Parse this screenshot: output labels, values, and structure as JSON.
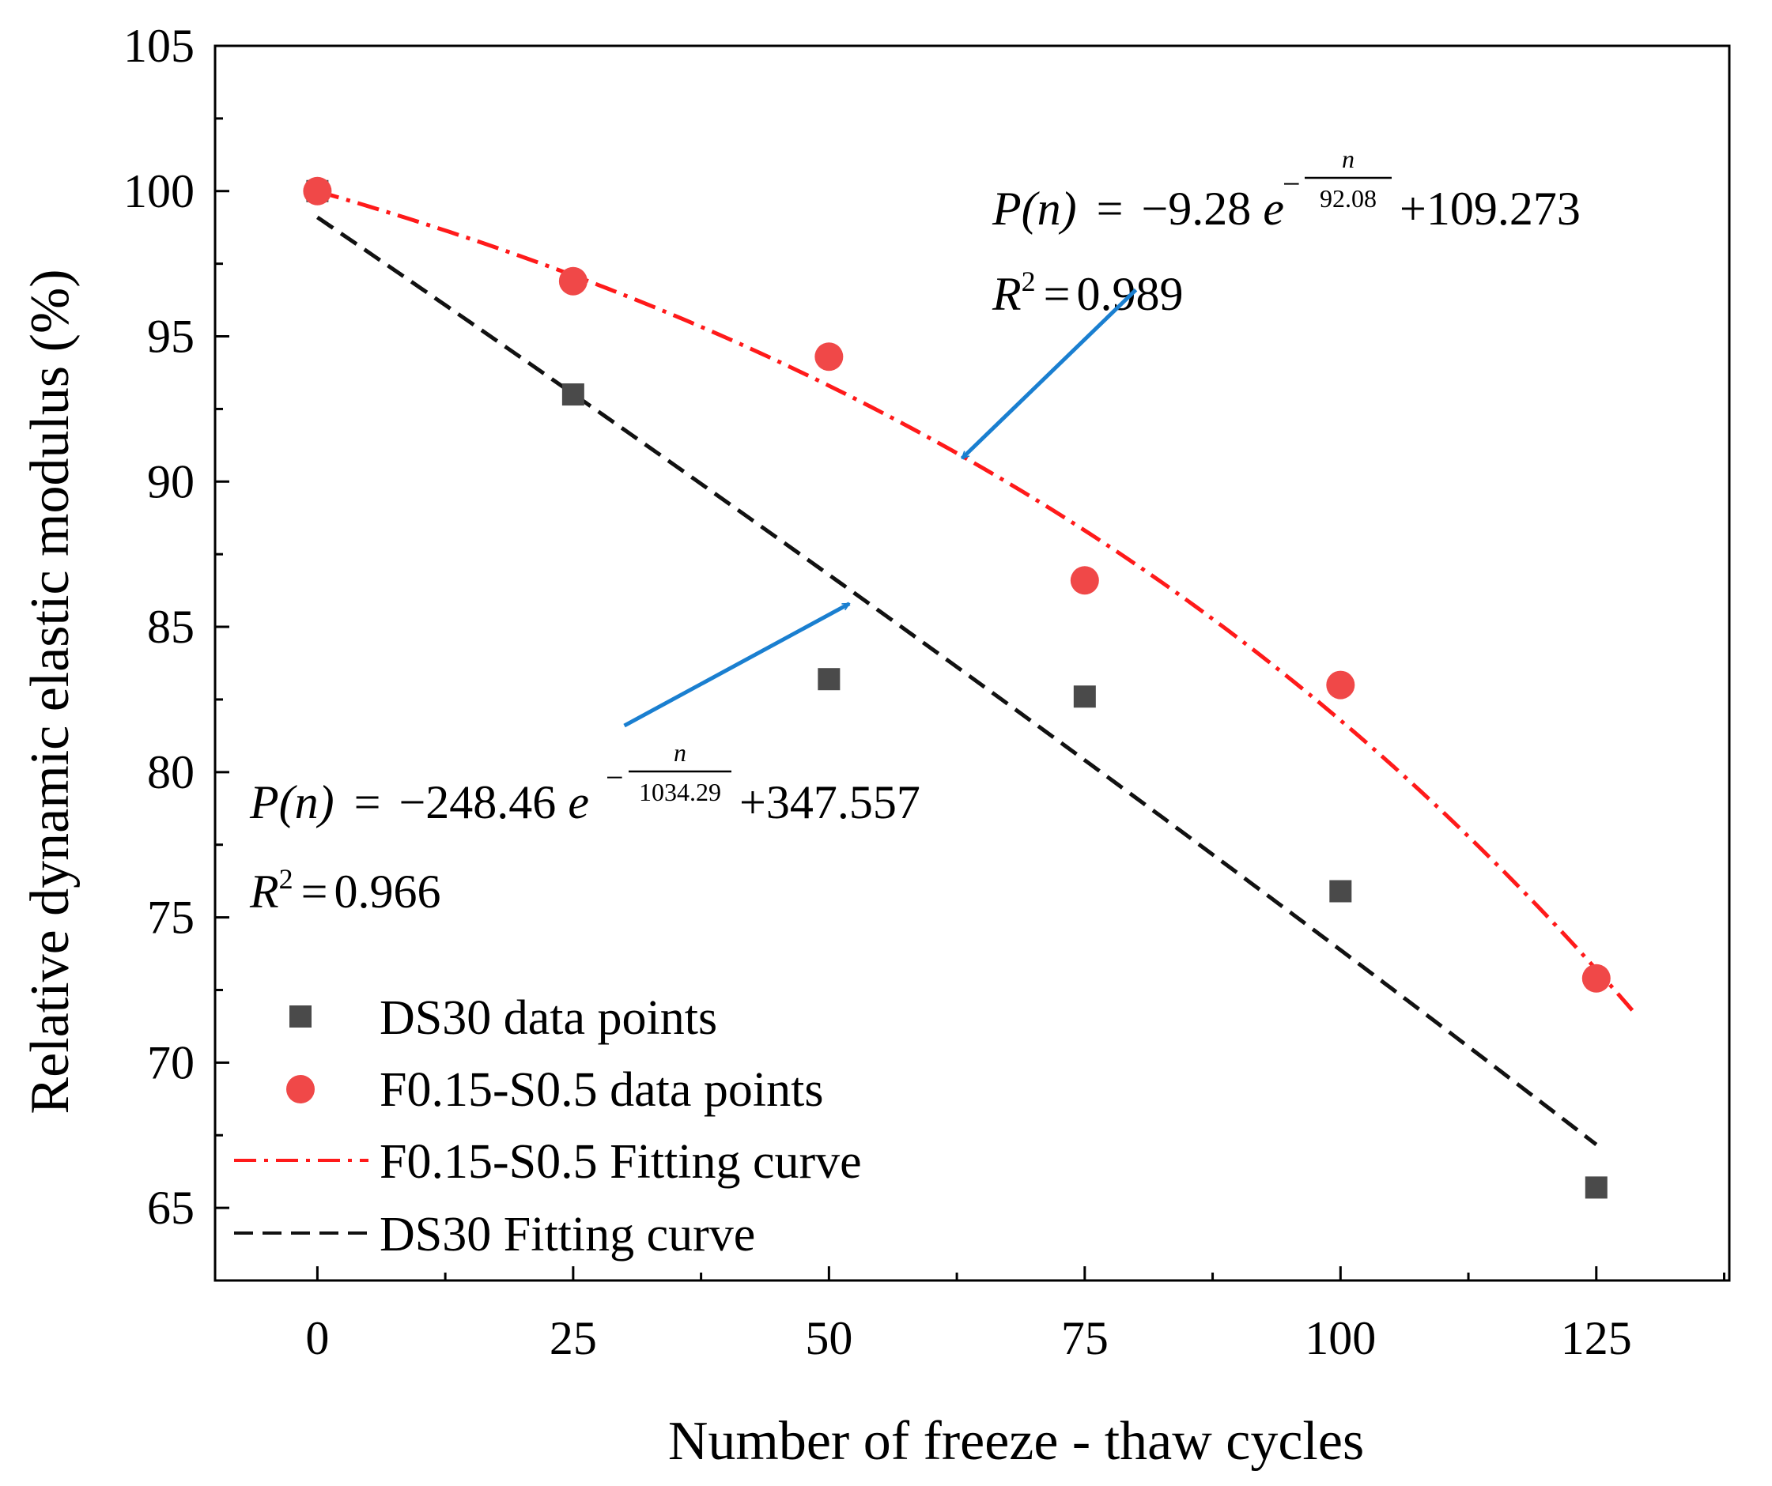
{
  "chart_data": {
    "type": "scatter",
    "xlabel": "Number of freeze - thaw cycles",
    "ylabel": "Relative dynamic elastic modulus (%)",
    "xlim": [
      -10,
      138
    ],
    "ylim": [
      62.5,
      105
    ],
    "xticks": [
      0,
      25,
      50,
      75,
      100,
      125
    ],
    "yticks": [
      65,
      70,
      75,
      80,
      85,
      90,
      95,
      100,
      105
    ],
    "series": [
      {
        "name": "DS30 data points",
        "kind": "points",
        "marker": "square",
        "color": "#4a4a4a",
        "x": [
          0,
          25,
          50,
          75,
          100,
          125
        ],
        "y": [
          100,
          93.0,
          83.2,
          82.6,
          75.9,
          65.7
        ]
      },
      {
        "name": "F0.15-S0.5 data points",
        "kind": "points",
        "marker": "circle",
        "color": "#f04848",
        "x": [
          0,
          25,
          50,
          75,
          100,
          125
        ],
        "y": [
          100,
          96.9,
          94.3,
          86.6,
          83.0,
          72.9
        ]
      },
      {
        "name": "F0.15-S0.5 Fitting curve",
        "kind": "curve",
        "style": "dashdot",
        "color": "#ff1a1a",
        "a": -9.28,
        "t": 92.08,
        "c": 109.273,
        "x_range": [
          0,
          129
        ]
      },
      {
        "name": "DS30 Fitting curve",
        "kind": "curve",
        "style": "dashed",
        "color": "#111111",
        "a": -248.46,
        "t": 1034.29,
        "c": 347.557,
        "x_range": [
          0,
          125
        ]
      }
    ],
    "annotations": [
      {
        "lhs": "P(n)",
        "coef": "−9.28",
        "base": "e",
        "exp_num": "n",
        "exp_den": "92.08",
        "tail": "+109.273",
        "r2_label": "R",
        "r2_value": "0.989",
        "arrow_from": [
          80,
          96.6
        ],
        "arrow_to": [
          63,
          90.8
        ],
        "arrow_color": "#1a7fd0"
      },
      {
        "lhs": "P(n)",
        "coef": "−248.46",
        "base": "e",
        "exp_num": "n",
        "exp_den": "1034.29",
        "tail": "+347.557",
        "r2_label": "R",
        "r2_value": "0.966",
        "arrow_from": [
          30,
          81.6
        ],
        "arrow_to": [
          52,
          85.8
        ],
        "arrow_color": "#1a7fd0"
      }
    ],
    "legend_position": "bottom-left"
  }
}
